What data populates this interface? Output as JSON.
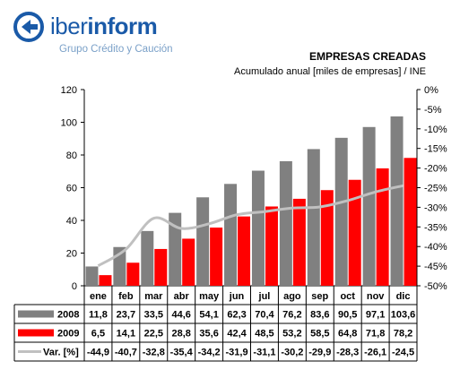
{
  "logo": {
    "brand_light": "iber",
    "brand_bold": "inform",
    "tagline": "Grupo Crédito y Caución"
  },
  "chart_data": {
    "type": "bar",
    "title": "EMPRESAS CREADAS",
    "subtitle": "Acumulado anual [miles de empresas] / INE",
    "categories": [
      "ene",
      "feb",
      "mar",
      "abr",
      "may",
      "jun",
      "jul",
      "ago",
      "sep",
      "oct",
      "nov",
      "dic"
    ],
    "ylim": [
      0,
      120
    ],
    "yticks": [
      "0",
      "20",
      "40",
      "60",
      "80",
      "100",
      "120"
    ],
    "y2lim": [
      -50,
      0
    ],
    "y2ticks": [
      "0%",
      "-5%",
      "-10%",
      "-15%",
      "-20%",
      "-25%",
      "-30%",
      "-35%",
      "-40%",
      "-45%",
      "-50%"
    ],
    "grid": false,
    "series": [
      {
        "name": "2008",
        "kind": "bar",
        "color": "#808080",
        "values": [
          11.8,
          23.7,
          33.5,
          44.6,
          54.1,
          62.3,
          70.4,
          76.2,
          83.6,
          90.5,
          97.1,
          103.6
        ],
        "labels": [
          "11,8",
          "23,7",
          "33,5",
          "44,6",
          "54,1",
          "62,3",
          "70,4",
          "76,2",
          "83,6",
          "90,5",
          "97,1",
          "103,6"
        ]
      },
      {
        "name": "2009",
        "kind": "bar",
        "color": "#ff0000",
        "values": [
          6.5,
          14.1,
          22.5,
          28.8,
          35.6,
          42.4,
          48.5,
          53.2,
          58.5,
          64.8,
          71.8,
          78.2
        ],
        "labels": [
          "6,5",
          "14,1",
          "22,5",
          "28,8",
          "35,6",
          "42,4",
          "48,5",
          "53,2",
          "58,5",
          "64,8",
          "71,8",
          "78,2"
        ]
      },
      {
        "name": "Var. [%]",
        "kind": "line",
        "axis": "right",
        "color": "#c0c0c0",
        "values": [
          -44.9,
          -40.7,
          -32.8,
          -35.4,
          -34.2,
          -31.9,
          -31.1,
          -30.2,
          -29.9,
          -28.3,
          -26.1,
          -24.5
        ],
        "labels": [
          "-44,9",
          "-40,7",
          "-32,8",
          "-35,4",
          "-34,2",
          "-31,9",
          "-31,1",
          "-30,2",
          "-29,9",
          "-28,3",
          "-26,1",
          "-24,5"
        ]
      }
    ]
  }
}
